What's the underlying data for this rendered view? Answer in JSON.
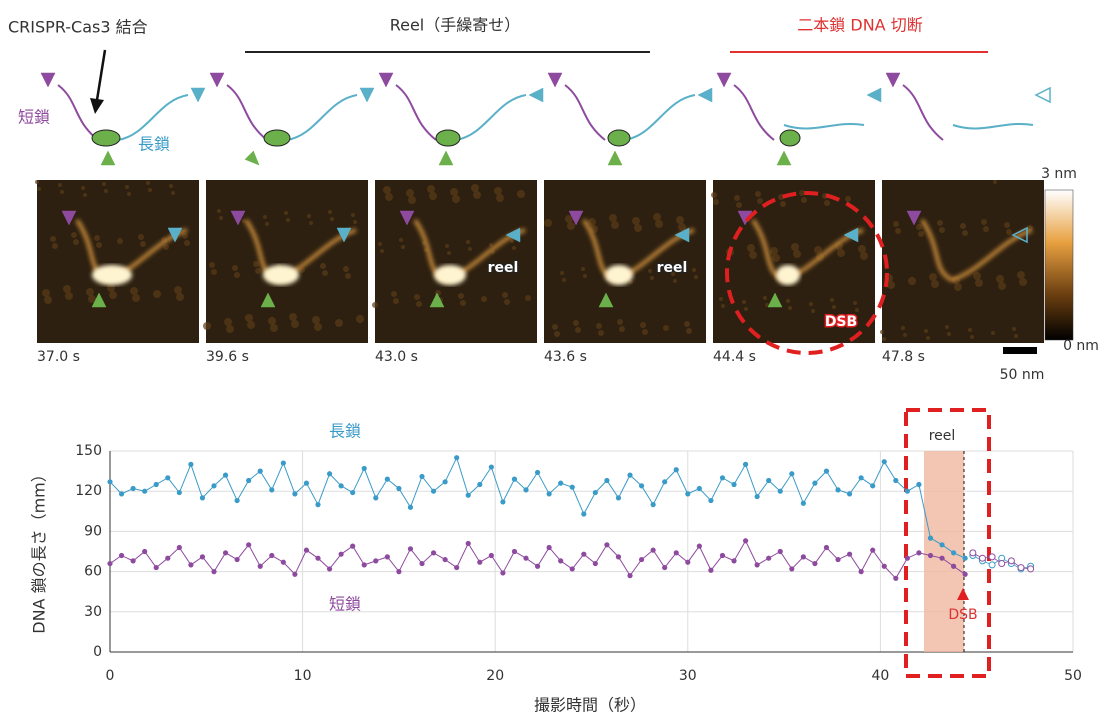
{
  "header": {
    "binding": "CRISPR-Cas3 結合",
    "reel": "Reel（手繰寄せ）",
    "dsb": "二本鎖 DNA 切断"
  },
  "cartoon_labels": {
    "short": "短鎖",
    "long": "長鎖"
  },
  "frames": [
    {
      "time": "37.0 s"
    },
    {
      "time": "39.6 s"
    },
    {
      "time": "43.0 s",
      "label": "reel"
    },
    {
      "time": "43.6 s",
      "label": "reel"
    },
    {
      "time": "44.4 s",
      "label": "DSB"
    },
    {
      "time": "47.8 s"
    }
  ],
  "colorbar": {
    "max": "3 nm",
    "min": "0 nm"
  },
  "scalebar": "50 nm",
  "chart_data": {
    "type": "line",
    "xlabel": "撮影時間（秒）",
    "ylabel": "DNA 鎖の長さ（mm）",
    "xlim": [
      0,
      50
    ],
    "xticks": [
      0,
      10,
      20,
      30,
      40,
      50
    ],
    "ylim": [
      0,
      150
    ],
    "yticks": [
      0,
      30,
      60,
      90,
      120,
      150
    ],
    "grid": true,
    "annotations": {
      "reel": "reel",
      "dsb": "DSB"
    },
    "x": [
      0,
      0.6,
      1.2,
      1.8,
      2.4,
      3,
      3.6,
      4.2,
      4.8,
      5.4,
      6,
      6.6,
      7.2,
      7.8,
      8.4,
      9,
      9.6,
      10.2,
      10.8,
      11.4,
      12,
      12.6,
      13.2,
      13.8,
      14.4,
      15,
      15.6,
      16.2,
      16.8,
      17.4,
      18,
      18.6,
      19.2,
      19.8,
      20.4,
      21,
      21.6,
      22.2,
      22.8,
      23.4,
      24,
      24.6,
      25.2,
      25.8,
      26.4,
      27,
      27.6,
      28.2,
      28.8,
      29.4,
      30,
      30.6,
      31.2,
      31.8,
      32.4,
      33,
      33.6,
      34.2,
      34.8,
      35.4,
      36,
      36.6,
      37.2,
      37.8,
      38.4,
      39,
      39.6,
      40.2,
      40.8,
      41.4,
      42,
      42.6,
      43.2,
      43.8,
      44.4
    ],
    "open_x": [
      44.8,
      45.3,
      45.8,
      46.3,
      46.8,
      47.3,
      47.8
    ],
    "series": [
      {
        "name": "長鎖",
        "color": "#3a9bc8",
        "values": [
          127,
          118,
          122,
          120,
          125,
          130,
          119,
          140,
          115,
          124,
          132,
          113,
          128,
          135,
          121,
          141,
          118,
          126,
          110,
          133,
          124,
          119,
          137,
          115,
          129,
          122,
          108,
          131,
          120,
          127,
          145,
          117,
          125,
          138,
          112,
          129,
          121,
          134,
          118,
          126,
          123,
          103,
          119,
          128,
          115,
          132,
          124,
          110,
          127,
          136,
          118,
          122,
          113,
          130,
          125,
          140,
          116,
          128,
          120,
          133,
          111,
          126,
          135,
          121,
          118,
          130,
          124,
          142,
          128,
          120,
          125,
          85,
          80,
          74,
          70
        ],
        "open_values": [
          72,
          68,
          65,
          70,
          66,
          62,
          64
        ]
      },
      {
        "name": "短鎖",
        "color": "#8e4a9e",
        "values": [
          66,
          72,
          68,
          75,
          63,
          70,
          78,
          65,
          71,
          60,
          74,
          69,
          80,
          64,
          72,
          67,
          58,
          76,
          70,
          62,
          73,
          79,
          65,
          68,
          71,
          60,
          77,
          66,
          74,
          69,
          63,
          81,
          67,
          72,
          59,
          75,
          70,
          64,
          78,
          68,
          62,
          73,
          66,
          80,
          71,
          57,
          69,
          76,
          63,
          74,
          67,
          79,
          61,
          72,
          68,
          83,
          65,
          70,
          75,
          62,
          71,
          66,
          78,
          69,
          73,
          60,
          76,
          64,
          55,
          70,
          74,
          72,
          70,
          64,
          58
        ],
        "open_values": [
          74,
          70,
          71,
          66,
          68,
          63,
          62
        ]
      }
    ]
  }
}
